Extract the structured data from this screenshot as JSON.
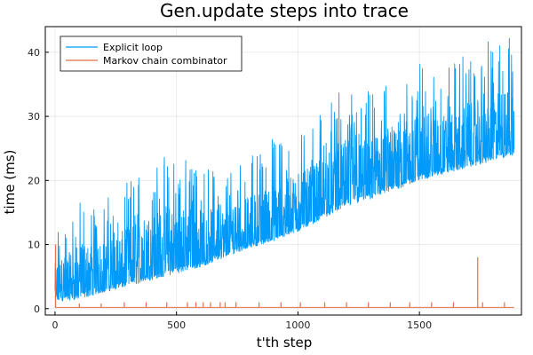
{
  "chart_data": {
    "type": "line",
    "title": "Gen.update steps into trace",
    "xlabel": "t'th step",
    "ylabel": "time (ms)",
    "xlim": [
      -40,
      1920
    ],
    "ylim": [
      -1,
      44
    ],
    "xticks": [
      0,
      500,
      1000,
      1500
    ],
    "yticks": [
      0,
      10,
      20,
      30,
      40
    ],
    "grid": true,
    "legend_position": "top-left",
    "series": [
      {
        "name": "Explicit loop",
        "color": "#009AFA",
        "style": "dense-noisy",
        "x": [
          0,
          100,
          200,
          300,
          400,
          500,
          600,
          700,
          800,
          900,
          1000,
          1100,
          1200,
          1300,
          1400,
          1500,
          1600,
          1700,
          1800,
          1890
        ],
        "y": [
          1,
          1.5,
          2.5,
          3.5,
          4.5,
          5.5,
          6.5,
          8,
          9.5,
          10.5,
          12,
          14,
          16,
          17,
          18.5,
          20,
          21,
          22,
          23,
          24
        ],
        "y_max": [
          12,
          17,
          17,
          20,
          24,
          24,
          23,
          22,
          24,
          27,
          28,
          31,
          35,
          34,
          36,
          39,
          38,
          40,
          42,
          43
        ]
      },
      {
        "name": "Markov chain combinator",
        "color": "#E26F46",
        "style": "baseline-spikes",
        "baseline": 0.2,
        "spikes": [
          {
            "x": 2,
            "y": 10
          },
          {
            "x": 100,
            "y": 0.8
          },
          {
            "x": 190,
            "y": 0.8
          },
          {
            "x": 285,
            "y": 1
          },
          {
            "x": 375,
            "y": 1
          },
          {
            "x": 460,
            "y": 1
          },
          {
            "x": 545,
            "y": 1
          },
          {
            "x": 580,
            "y": 1
          },
          {
            "x": 610,
            "y": 1
          },
          {
            "x": 640,
            "y": 1
          },
          {
            "x": 680,
            "y": 1
          },
          {
            "x": 700,
            "y": 1
          },
          {
            "x": 745,
            "y": 1
          },
          {
            "x": 840,
            "y": 1
          },
          {
            "x": 930,
            "y": 1
          },
          {
            "x": 1010,
            "y": 1
          },
          {
            "x": 1110,
            "y": 1
          },
          {
            "x": 1200,
            "y": 1
          },
          {
            "x": 1290,
            "y": 1
          },
          {
            "x": 1380,
            "y": 1
          },
          {
            "x": 1460,
            "y": 1
          },
          {
            "x": 1550,
            "y": 1
          },
          {
            "x": 1640,
            "y": 1
          },
          {
            "x": 1740,
            "y": 8
          },
          {
            "x": 1760,
            "y": 1
          },
          {
            "x": 1850,
            "y": 1
          }
        ]
      }
    ]
  }
}
